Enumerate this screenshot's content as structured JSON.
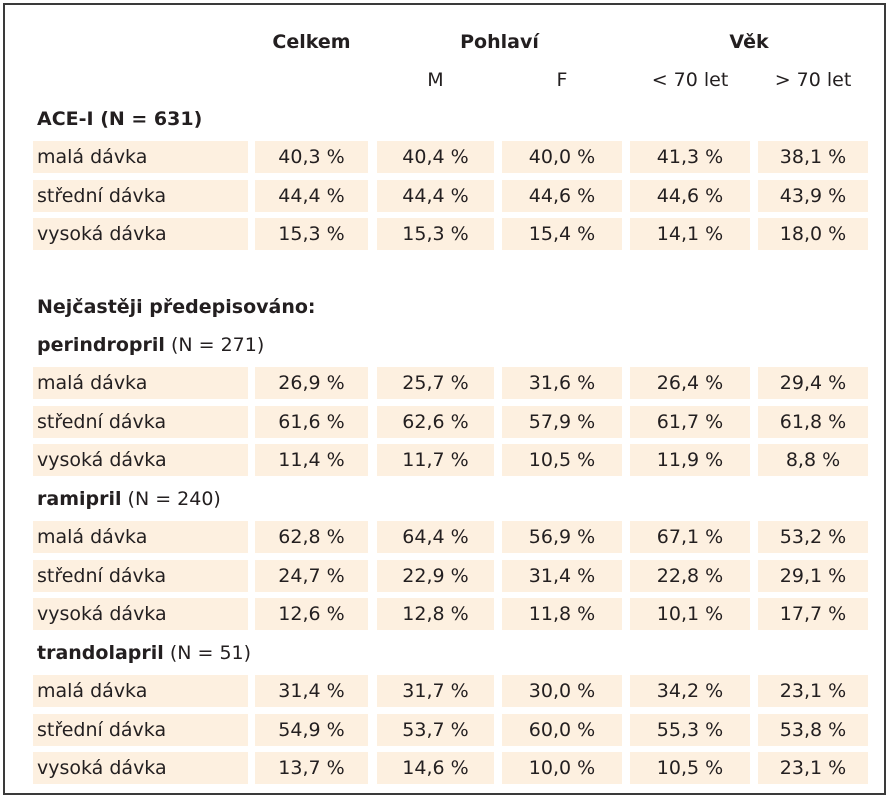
{
  "header": {
    "total": "Celkem",
    "sex": "Pohlaví",
    "age": "Věk",
    "sub": [
      "M",
      "F",
      "< 70 let",
      "> 70 let"
    ]
  },
  "groups": {
    "ace": {
      "title": "ACE-I (N = 631)",
      "rows": [
        {
          "label": "malá dávka",
          "values": [
            "40,3 %",
            "40,4 %",
            "40,0 %",
            "41,3 %",
            "38,1 %"
          ]
        },
        {
          "label": "střední dávka",
          "values": [
            "44,4 %",
            "44,4 %",
            "44,6 %",
            "44,6 %",
            "43,9 %"
          ]
        },
        {
          "label": "vysoká dávka",
          "values": [
            "15,3 %",
            "15,3 %",
            "15,4 %",
            "14,1 %",
            "18,0 %"
          ]
        }
      ]
    },
    "most_prescribed": "Nejčastěji předepisováno:",
    "perindopril": {
      "name": "perindropril",
      "n": " (N = 271)",
      "rows": [
        {
          "label": "malá dávka",
          "values": [
            "26,9 %",
            "25,7 %",
            "31,6 %",
            "26,4 %",
            "29,4 %"
          ]
        },
        {
          "label": "střední dávka",
          "values": [
            "61,6 %",
            "62,6 %",
            "57,9 %",
            "61,7 %",
            "61,8 %"
          ]
        },
        {
          "label": "vysoká dávka",
          "values": [
            "11,4 %",
            "11,7 %",
            "10,5 %",
            "11,9 %",
            "8,8 %"
          ]
        }
      ]
    },
    "ramipril": {
      "name": "ramipril",
      "n": " (N = 240)",
      "rows": [
        {
          "label": "malá dávka",
          "values": [
            "62,8 %",
            "64,4 %",
            "56,9 %",
            "67,1 %",
            "53,2 %"
          ]
        },
        {
          "label": "střední dávka",
          "values": [
            "24,7 %",
            "22,9 %",
            "31,4 %",
            "22,8 %",
            "29,1 %"
          ]
        },
        {
          "label": "vysoká dávka",
          "values": [
            "12,6 %",
            "12,8 %",
            "11,8 %",
            "10,1 %",
            "17,7 %"
          ]
        }
      ]
    },
    "trandolapril": {
      "name": "trandolapril",
      "n": " (N = 51)",
      "rows": [
        {
          "label": "malá dávka",
          "values": [
            "31,4 %",
            "31,7 %",
            "30,0 %",
            "34,2 %",
            "23,1 %"
          ]
        },
        {
          "label": "střední dávka",
          "values": [
            "54,9 %",
            "53,7 %",
            "60,0 %",
            "55,3 %",
            "53,8 %"
          ]
        },
        {
          "label": "vysoká dávka",
          "values": [
            "13,7 %",
            "14,6 %",
            "10,0 %",
            "10,5 %",
            "23,1 %"
          ]
        }
      ]
    }
  },
  "colors": {
    "row_shade": "#fdf0e0",
    "border": "#3a3a3a",
    "text": "#231f20"
  }
}
